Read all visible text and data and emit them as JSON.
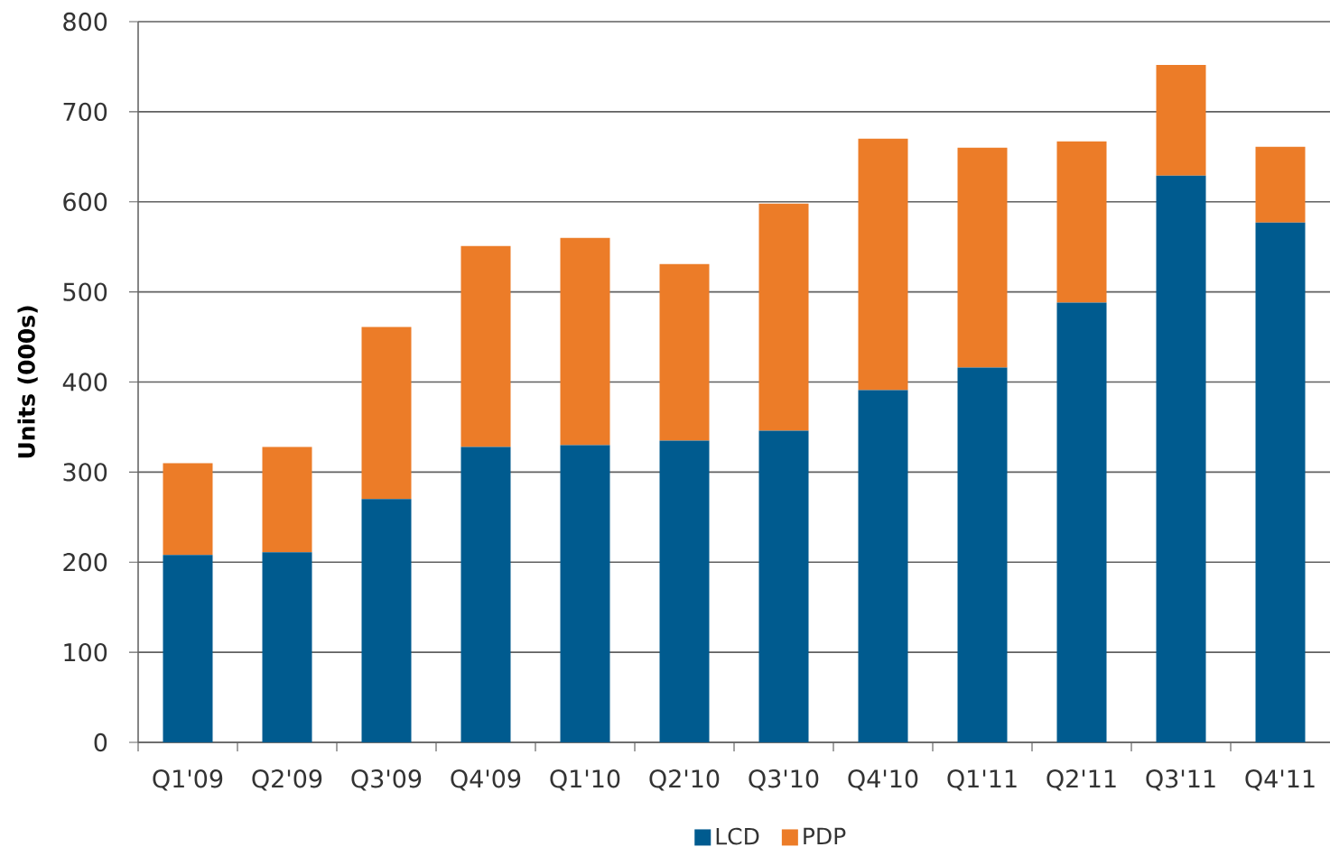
{
  "chart_data": {
    "type": "bar",
    "stacked": true,
    "ylabel": "Units (000s)",
    "categories": [
      "Q1'09",
      "Q2'09",
      "Q3'09",
      "Q4'09",
      "Q1'10",
      "Q2'10",
      "Q3'10",
      "Q4'10",
      "Q1'11",
      "Q2'11",
      "Q3'11",
      "Q4'11"
    ],
    "series": [
      {
        "name": "LCD",
        "color": "#005b8f",
        "values": [
          208,
          211,
          270,
          328,
          330,
          335,
          346,
          391,
          416,
          488,
          629,
          577
        ]
      },
      {
        "name": "PDP",
        "color": "#ec7c28",
        "values": [
          102,
          117,
          191,
          223,
          230,
          196,
          252,
          279,
          244,
          179,
          123,
          84
        ]
      }
    ],
    "ylim": [
      0,
      800
    ],
    "yticks": [
      0,
      100,
      200,
      300,
      400,
      500,
      600,
      700,
      800
    ],
    "grid": "y",
    "legend": "bottom"
  }
}
